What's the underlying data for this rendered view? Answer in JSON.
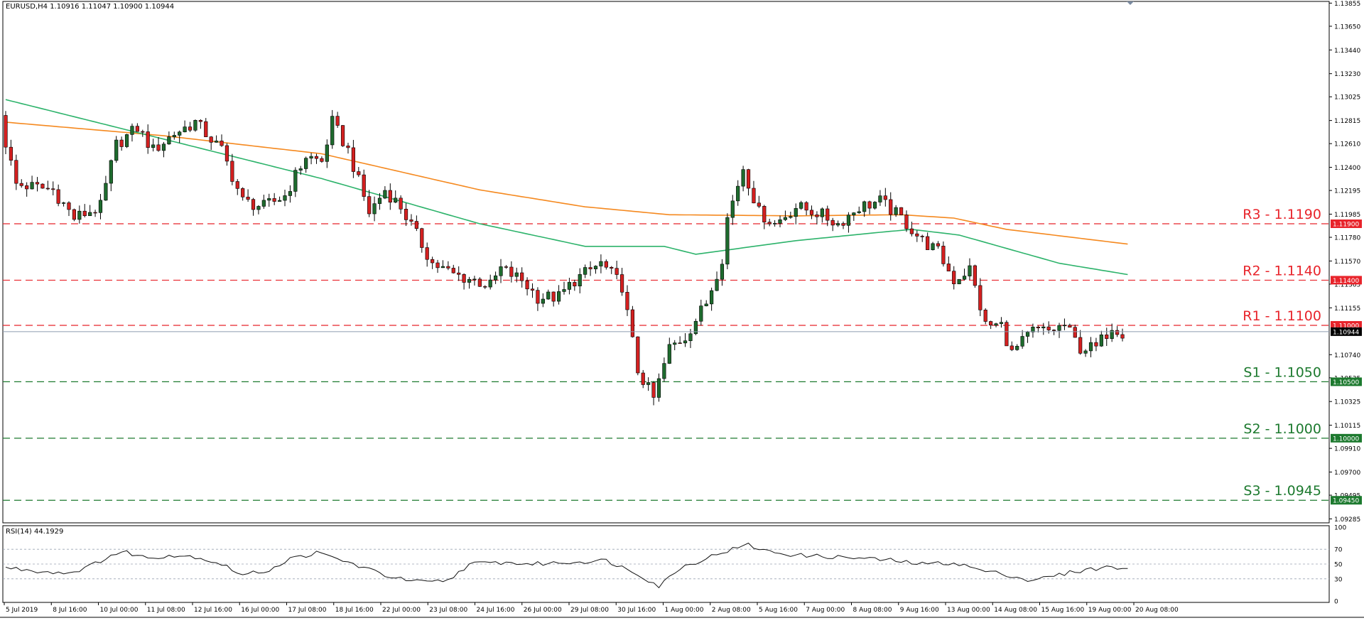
{
  "header": {
    "symbol_info": "EURUSD,H4  1.10916 1.11047 1.10900 1.10944"
  },
  "rsi_header": "RSI(14) 44.1929",
  "colors": {
    "background": "#ffffff",
    "bull_candle": "#1e6b2e",
    "bear_candle": "#d42020",
    "ma_fast": "#2db36b",
    "ma_slow": "#f5891f",
    "resistance": "#e8242b",
    "support": "#1d7a2f",
    "current_price_line": "#8e9cb0",
    "rsi_line": "#111111"
  },
  "price_axis": {
    "ticks": [
      "1.13855",
      "1.13650",
      "1.13440",
      "1.13230",
      "1.13025",
      "1.12815",
      "1.12610",
      "1.12400",
      "1.12195",
      "1.11985",
      "1.11780",
      "1.11570",
      "1.11365",
      "1.11155",
      "1.10740",
      "1.10535",
      "1.10325",
      "1.10115",
      "1.09910",
      "1.09700",
      "1.09495",
      "1.09285"
    ],
    "range": [
      1.0925,
      1.1387
    ]
  },
  "levels": [
    {
      "name": "R3 - 1.1190",
      "value": 1.119,
      "tag": "1.11900",
      "kind": "resistance"
    },
    {
      "name": "R2 - 1.1140",
      "value": 1.114,
      "tag": "1.11400",
      "kind": "resistance"
    },
    {
      "name": "R1 - 1.1100",
      "value": 1.11,
      "tag": "1.11000",
      "kind": "resistance"
    },
    {
      "name": "S1 - 1.1050",
      "value": 1.105,
      "tag": "1.10500",
      "kind": "support"
    },
    {
      "name": "S2 - 1.1000",
      "value": 1.1,
      "tag": "1.10000",
      "kind": "support"
    },
    {
      "name": "S3 - 1.0945",
      "value": 1.0945,
      "tag": "1.09450",
      "kind": "support"
    }
  ],
  "current_price": {
    "value": 1.10944,
    "tag": "1.10944"
  },
  "rsi_axis": {
    "ticks": [
      "100",
      "70",
      "50",
      "30",
      "0"
    ],
    "levels": [
      70,
      50,
      30
    ]
  },
  "time_axis": {
    "labels": [
      "5 Jul 2019",
      "8 Jul 16:00",
      "10 Jul 00:00",
      "11 Jul 08:00",
      "12 Jul 16:00",
      "16 Jul 00:00",
      "17 Jul 08:00",
      "18 Jul 16:00",
      "22 Jul 00:00",
      "23 Jul 08:00",
      "24 Jul 16:00",
      "26 Jul 00:00",
      "29 Jul 08:00",
      "30 Jul 16:00",
      "1 Aug 00:00",
      "2 Aug 08:00",
      "5 Aug 16:00",
      "7 Aug 00:00",
      "8 Aug 08:00",
      "9 Aug 16:00",
      "13 Aug 00:00",
      "14 Aug 08:00",
      "15 Aug 16:00",
      "19 Aug 00:00",
      "20 Aug 08:00"
    ]
  },
  "chart_data": {
    "type": "candlestick",
    "symbol": "EURUSD",
    "timeframe": "H4",
    "candle_count": 213,
    "close_path": [
      [
        0,
        1.128
      ],
      [
        3,
        1.1225
      ],
      [
        10,
        1.122
      ],
      [
        14,
        1.1195
      ],
      [
        19,
        1.1205
      ],
      [
        22,
        1.126
      ],
      [
        26,
        1.1275
      ],
      [
        29,
        1.1255
      ],
      [
        33,
        1.127
      ],
      [
        37,
        1.128
      ],
      [
        42,
        1.1255
      ],
      [
        46,
        1.121
      ],
      [
        50,
        1.1205
      ],
      [
        54,
        1.1215
      ],
      [
        58,
        1.125
      ],
      [
        61,
        1.1245
      ],
      [
        63,
        1.128
      ],
      [
        66,
        1.1255
      ],
      [
        70,
        1.12
      ],
      [
        73,
        1.122
      ],
      [
        76,
        1.1205
      ],
      [
        79,
        1.118
      ],
      [
        82,
        1.1155
      ],
      [
        86,
        1.1145
      ],
      [
        90,
        1.114
      ],
      [
        93,
        1.1135
      ],
      [
        95,
        1.115
      ],
      [
        99,
        1.114
      ],
      [
        102,
        1.1125
      ],
      [
        106,
        1.1125
      ],
      [
        109,
        1.114
      ],
      [
        114,
        1.1155
      ],
      [
        118,
        1.1135
      ],
      [
        121,
        1.106
      ],
      [
        124,
        1.1035
      ],
      [
        127,
        1.108
      ],
      [
        130,
        1.109
      ],
      [
        134,
        1.112
      ],
      [
        137,
        1.116
      ],
      [
        138,
        1.1195
      ],
      [
        141,
        1.124
      ],
      [
        144,
        1.12
      ],
      [
        147,
        1.119
      ],
      [
        151,
        1.1205
      ],
      [
        155,
        1.12
      ],
      [
        159,
        1.119
      ],
      [
        163,
        1.1205
      ],
      [
        167,
        1.121
      ],
      [
        171,
        1.1195
      ],
      [
        175,
        1.1175
      ],
      [
        178,
        1.1165
      ],
      [
        181,
        1.114
      ],
      [
        184,
        1.115
      ],
      [
        187,
        1.11
      ],
      [
        190,
        1.11
      ],
      [
        192,
        1.1075
      ],
      [
        196,
        1.1095
      ],
      [
        199,
        1.1095
      ],
      [
        202,
        1.11
      ],
      [
        205,
        1.108
      ],
      [
        208,
        1.108
      ],
      [
        211,
        1.11
      ],
      [
        213,
        1.1094
      ]
    ],
    "ma_fast_path": [
      [
        0,
        1.13
      ],
      [
        30,
        1.1265
      ],
      [
        60,
        1.123
      ],
      [
        90,
        1.119
      ],
      [
        110,
        1.117
      ],
      [
        125,
        1.117
      ],
      [
        131,
        1.1163
      ],
      [
        150,
        1.1175
      ],
      [
        165,
        1.1182
      ],
      [
        172,
        1.1185
      ],
      [
        181,
        1.118
      ],
      [
        200,
        1.1155
      ],
      [
        213,
        1.1145
      ]
    ],
    "ma_slow_path": [
      [
        0,
        1.128
      ],
      [
        30,
        1.1268
      ],
      [
        60,
        1.1252
      ],
      [
        90,
        1.122
      ],
      [
        110,
        1.1205
      ],
      [
        126,
        1.1198
      ],
      [
        150,
        1.1197
      ],
      [
        170,
        1.1198
      ],
      [
        180,
        1.1195
      ],
      [
        190,
        1.1185
      ],
      [
        213,
        1.1172
      ]
    ],
    "rsi_path": [
      [
        0,
        45
      ],
      [
        7,
        40
      ],
      [
        12,
        38
      ],
      [
        16,
        47
      ],
      [
        20,
        62
      ],
      [
        23,
        66
      ],
      [
        27,
        58
      ],
      [
        31,
        62
      ],
      [
        36,
        60
      ],
      [
        41,
        50
      ],
      [
        45,
        35
      ],
      [
        50,
        42
      ],
      [
        54,
        57
      ],
      [
        59,
        65
      ],
      [
        63,
        57
      ],
      [
        68,
        45
      ],
      [
        72,
        35
      ],
      [
        76,
        28
      ],
      [
        80,
        25
      ],
      [
        84,
        28
      ],
      [
        88,
        50
      ],
      [
        94,
        52
      ],
      [
        100,
        50
      ],
      [
        106,
        52
      ],
      [
        114,
        55
      ],
      [
        120,
        37
      ],
      [
        124,
        20
      ],
      [
        128,
        45
      ],
      [
        132,
        55
      ],
      [
        136,
        66
      ],
      [
        141,
        76
      ],
      [
        144,
        68
      ],
      [
        150,
        62
      ],
      [
        156,
        60
      ],
      [
        162,
        58
      ],
      [
        168,
        55
      ],
      [
        174,
        50
      ],
      [
        180,
        52
      ],
      [
        186,
        40
      ],
      [
        190,
        36
      ],
      [
        194,
        28
      ],
      [
        198,
        32
      ],
      [
        203,
        40
      ],
      [
        207,
        44
      ],
      [
        210,
        46
      ],
      [
        213,
        44
      ]
    ],
    "last": {
      "open": 1.10916,
      "high": 1.11047,
      "low": 1.109,
      "close": 1.10944
    },
    "rsi_last": 44.1929
  }
}
